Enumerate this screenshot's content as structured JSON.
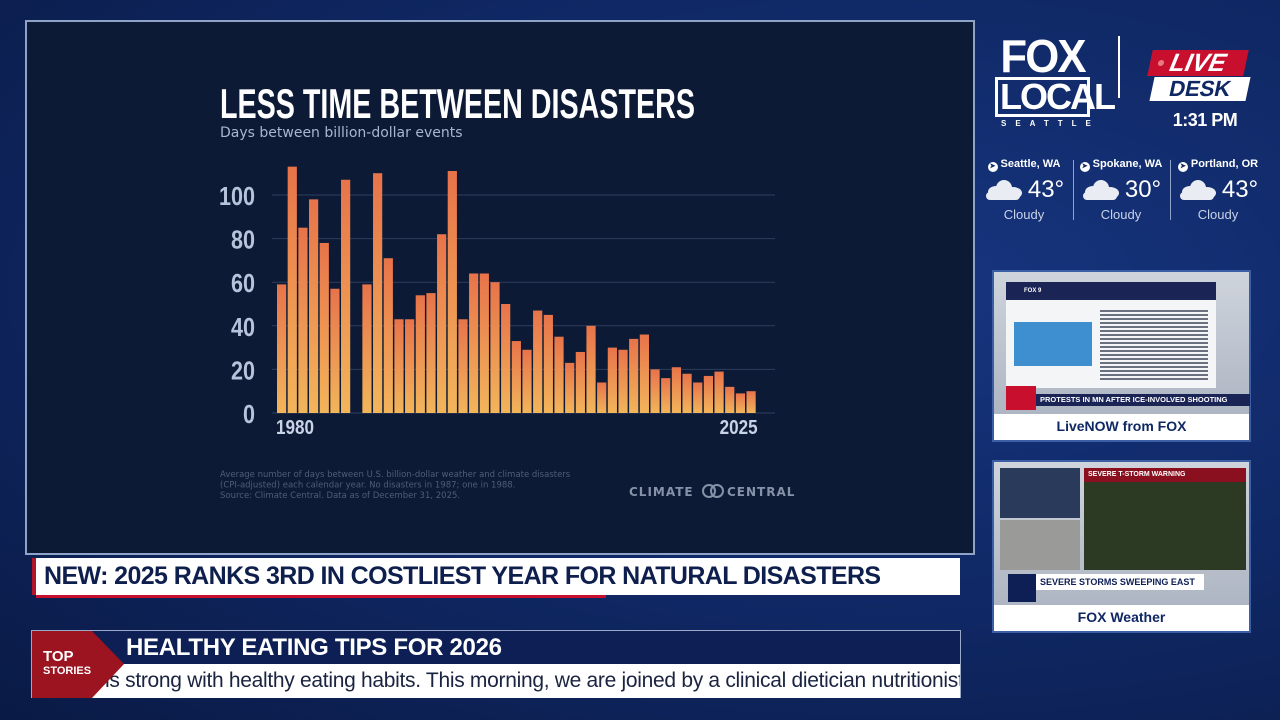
{
  "chart_data": {
    "type": "bar",
    "title": "LESS TIME BETWEEN DISASTERS",
    "subtitle": "Days between billion-dollar events",
    "x": [
      1980,
      1981,
      1982,
      1983,
      1984,
      1985,
      1986,
      1987,
      1988,
      1989,
      1990,
      1991,
      1992,
      1993,
      1994,
      1995,
      1996,
      1997,
      1998,
      1999,
      2000,
      2001,
      2002,
      2003,
      2004,
      2005,
      2006,
      2007,
      2008,
      2009,
      2010,
      2011,
      2012,
      2013,
      2014,
      2015,
      2016,
      2017,
      2018,
      2019,
      2020,
      2021,
      2022,
      2023,
      2024,
      2025
    ],
    "values": [
      59,
      113,
      85,
      98,
      78,
      57,
      107,
      null,
      null,
      59,
      110,
      71,
      43,
      43,
      54,
      55,
      82,
      111,
      43,
      64,
      64,
      60,
      50,
      33,
      29,
      47,
      45,
      35,
      23,
      28,
      40,
      14,
      30,
      29,
      34,
      36,
      20,
      16,
      21,
      18,
      14,
      17,
      19,
      12,
      9,
      10
    ],
    "x_tick_labels": [
      "1980",
      "2025"
    ],
    "y_ticks": [
      0,
      20,
      40,
      60,
      80,
      100
    ],
    "ylim": [
      0,
      115
    ],
    "grid": "horizontal",
    "bar_gradient": [
      "#e8734a",
      "#f2b55a"
    ],
    "notes": [
      "Average number of days between U.S. billion-dollar weather and climate disasters",
      "(CPI-adjusted) each calendar year. No disasters in 1987; one in 1988.",
      "Source: Climate Central. Data as of December 31, 2025."
    ],
    "credit": "CLIMATE CENTRAL"
  },
  "branding": {
    "logo_line1": "FOX",
    "logo_line2": "LOCAL",
    "logo_city": "SEATTLE",
    "live": "LIVE",
    "desk": "DESK",
    "time": "1:31 PM"
  },
  "weather": [
    {
      "city": "Seattle, WA",
      "temp": "43°",
      "condition": "Cloudy",
      "icon": "cloud-icon"
    },
    {
      "city": "Spokane, WA",
      "temp": "30°",
      "condition": "Cloudy",
      "icon": "cloud-icon"
    },
    {
      "city": "Portland, OR",
      "temp": "43°",
      "condition": "Cloudy",
      "icon": "cloud-icon"
    }
  ],
  "insets": [
    {
      "caption": "LiveNOW from FOX",
      "screen_headline": "PROTESTS IN MN AFTER ICE-INVOLVED SHOOTING",
      "screen_source": "FOX 9"
    },
    {
      "caption": "FOX Weather",
      "screen_headline": "SEVERE STORMS SWEEPING EAST",
      "screen_alert": "SEVERE T-STORM WARNING"
    }
  ],
  "ticker": {
    "headline": "NEW: 2025 RANKS 3RD IN COSTLIEST YEAR FOR NATURAL DISASTERS",
    "top_stories_label_1": "TOP",
    "top_stories_label_2": "STORIES",
    "story_title": "HEALTHY EATING TIPS FOR 2026",
    "crawl": "ns strong with healthy eating habits. This morning, we are joined by a clinical dietician nutritionist at Universit"
  },
  "colors": {
    "accent_red": "#c8102e",
    "navy": "#0e1f55",
    "chart_bg": "#0c1a35"
  }
}
